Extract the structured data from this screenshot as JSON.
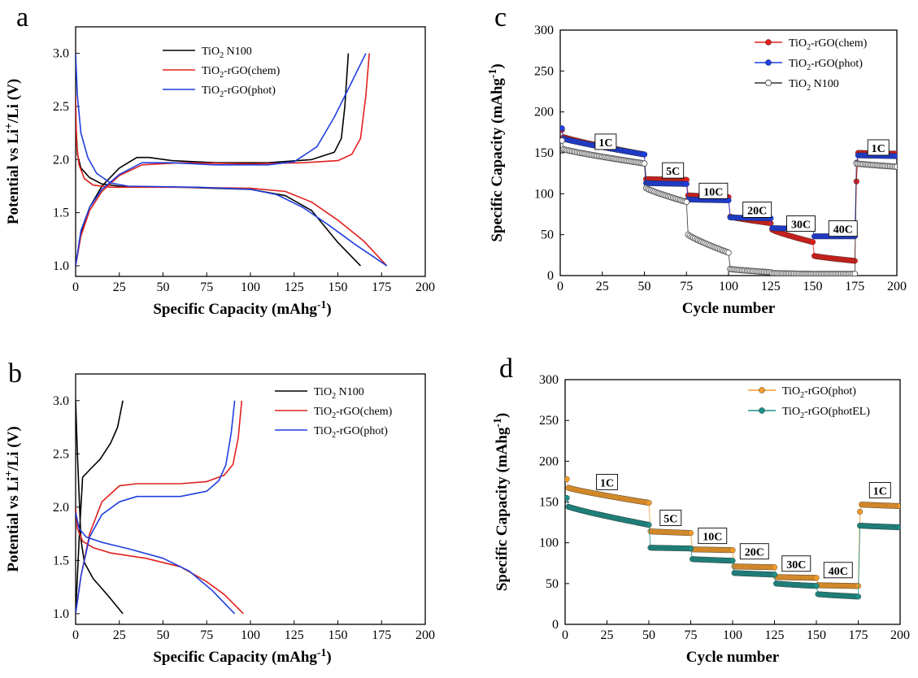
{
  "chart_data": [
    {
      "panel": "a",
      "type": "line",
      "xlabel": "Specific Capacity (mAhg⁻¹)",
      "ylabel": "Potential vs Li⁺/Li (V)",
      "xlim": [
        0,
        200
      ],
      "ylim": [
        0.9,
        3.25
      ],
      "xticks": [
        "0",
        "25",
        "50",
        "75",
        "100",
        "125",
        "150",
        "175",
        "200"
      ],
      "yticks": [
        "1.0",
        "1.5",
        "2.0",
        "2.5",
        "3.0"
      ],
      "legend_position": "top-center",
      "series": [
        {
          "name": "TiO₂ N100",
          "color": "#000000",
          "points": [
            [
              0,
              1.0
            ],
            [
              3,
              1.3
            ],
            [
              8,
              1.55
            ],
            [
              15,
              1.75
            ],
            [
              25,
              1.92
            ],
            [
              35,
              2.02
            ],
            [
              42,
              2.02
            ],
            [
              55,
              1.99
            ],
            [
              80,
              1.97
            ],
            [
              110,
              1.97
            ],
            [
              135,
              2.0
            ],
            [
              148,
              2.07
            ],
            [
              152,
              2.2
            ],
            [
              154,
              2.5
            ],
            [
              156,
              3.0
            ],
            null,
            [
              0,
              2.4
            ],
            [
              1,
              2.05
            ],
            [
              3,
              1.92
            ],
            [
              8,
              1.83
            ],
            [
              15,
              1.77
            ],
            [
              25,
              1.75
            ],
            [
              60,
              1.74
            ],
            [
              100,
              1.72
            ],
            [
              120,
              1.66
            ],
            [
              135,
              1.52
            ],
            [
              150,
              1.22
            ],
            [
              163,
              1.0
            ]
          ]
        },
        {
          "name": "TiO₂-rGO(chem)",
          "color": "#e0201c",
          "points": [
            [
              0,
              1.0
            ],
            [
              3,
              1.28
            ],
            [
              8,
              1.52
            ],
            [
              15,
              1.7
            ],
            [
              25,
              1.85
            ],
            [
              38,
              1.95
            ],
            [
              60,
              1.97
            ],
            [
              100,
              1.96
            ],
            [
              130,
              1.97
            ],
            [
              150,
              1.99
            ],
            [
              158,
              2.05
            ],
            [
              163,
              2.2
            ],
            [
              166,
              2.6
            ],
            [
              168,
              3.0
            ],
            null,
            [
              0,
              2.6
            ],
            [
              0.5,
              2.15
            ],
            [
              2,
              1.95
            ],
            [
              5,
              1.82
            ],
            [
              10,
              1.76
            ],
            [
              20,
              1.74
            ],
            [
              60,
              1.74
            ],
            [
              100,
              1.73
            ],
            [
              120,
              1.7
            ],
            [
              135,
              1.6
            ],
            [
              150,
              1.43
            ],
            [
              165,
              1.23
            ],
            [
              178,
              1.0
            ]
          ]
        },
        {
          "name": "TiO₂-rGO(phot)",
          "color": "#1f3fe0",
          "points": [
            [
              0,
              1.0
            ],
            [
              3,
              1.33
            ],
            [
              8,
              1.55
            ],
            [
              15,
              1.72
            ],
            [
              25,
              1.86
            ],
            [
              38,
              1.97
            ],
            [
              55,
              1.97
            ],
            [
              80,
              1.95
            ],
            [
              110,
              1.95
            ],
            [
              125,
              1.98
            ],
            [
              138,
              2.12
            ],
            [
              148,
              2.4
            ],
            [
              157,
              2.7
            ],
            [
              166,
              3.0
            ],
            null,
            [
              0,
              3.0
            ],
            [
              1,
              2.6
            ],
            [
              3,
              2.25
            ],
            [
              7,
              2.02
            ],
            [
              12,
              1.87
            ],
            [
              20,
              1.78
            ],
            [
              30,
              1.75
            ],
            [
              70,
              1.74
            ],
            [
              100,
              1.72
            ],
            [
              115,
              1.67
            ],
            [
              130,
              1.55
            ],
            [
              145,
              1.38
            ],
            [
              160,
              1.2
            ],
            [
              178,
              1.0
            ]
          ]
        }
      ]
    },
    {
      "panel": "b",
      "type": "line",
      "xlabel": "Specific Capacity (mAhg⁻¹)",
      "ylabel": "Potential vs Li⁺/Li (V)",
      "xlim": [
        0,
        200
      ],
      "ylim": [
        0.9,
        3.25
      ],
      "xticks": [
        "0",
        "25",
        "50",
        "75",
        "100",
        "125",
        "150",
        "175",
        "200"
      ],
      "yticks": [
        "1.0",
        "1.5",
        "2.0",
        "2.5",
        "3.0"
      ],
      "legend_position": "top-right",
      "series": [
        {
          "name": "TiO₂ N100",
          "color": "#000000",
          "points": [
            [
              0,
              1.0
            ],
            [
              1,
              1.35
            ],
            [
              2,
              1.7
            ],
            [
              3,
              2.0
            ],
            [
              4,
              2.28
            ],
            [
              8,
              2.35
            ],
            [
              14,
              2.45
            ],
            [
              20,
              2.6
            ],
            [
              24,
              2.75
            ],
            [
              27,
              3.0
            ],
            null,
            [
              0,
              3.0
            ],
            [
              1,
              2.5
            ],
            [
              3,
              1.7
            ],
            [
              5,
              1.48
            ],
            [
              10,
              1.33
            ],
            [
              18,
              1.18
            ],
            [
              27,
              1.0
            ]
          ]
        },
        {
          "name": "TiO₂-rGO(chem)",
          "color": "#e0201c",
          "points": [
            [
              0,
              1.0
            ],
            [
              3,
              1.35
            ],
            [
              8,
              1.75
            ],
            [
              15,
              2.05
            ],
            [
              25,
              2.2
            ],
            [
              35,
              2.22
            ],
            [
              60,
              2.22
            ],
            [
              75,
              2.24
            ],
            [
              85,
              2.3
            ],
            [
              90,
              2.4
            ],
            [
              93,
              2.65
            ],
            [
              95,
              3.0
            ],
            null,
            [
              0,
              2.0
            ],
            [
              1,
              1.8
            ],
            [
              4,
              1.68
            ],
            [
              10,
              1.62
            ],
            [
              20,
              1.57
            ],
            [
              40,
              1.52
            ],
            [
              60,
              1.44
            ],
            [
              75,
              1.3
            ],
            [
              85,
              1.18
            ],
            [
              96,
              1.0
            ]
          ]
        },
        {
          "name": "TiO₂-rGO(phot)",
          "color": "#1f3fe0",
          "points": [
            [
              0,
              1.0
            ],
            [
              3,
              1.35
            ],
            [
              8,
              1.72
            ],
            [
              15,
              1.93
            ],
            [
              25,
              2.05
            ],
            [
              35,
              2.1
            ],
            [
              60,
              2.1
            ],
            [
              75,
              2.15
            ],
            [
              82,
              2.25
            ],
            [
              86,
              2.4
            ],
            [
              89,
              2.7
            ],
            [
              91,
              3.0
            ],
            null,
            [
              0,
              1.95
            ],
            [
              2,
              1.8
            ],
            [
              6,
              1.72
            ],
            [
              15,
              1.67
            ],
            [
              30,
              1.61
            ],
            [
              50,
              1.52
            ],
            [
              65,
              1.4
            ],
            [
              78,
              1.22
            ],
            [
              91,
              1.0
            ]
          ]
        }
      ]
    },
    {
      "panel": "c",
      "type": "scatter",
      "xlabel": "Cycle number",
      "ylabel": "Specific Capacity (mAhg⁻¹)",
      "xlim": [
        0,
        200
      ],
      "ylim": [
        0,
        300
      ],
      "xticks": [
        "0",
        "25",
        "50",
        "75",
        "100",
        "125",
        "150",
        "175",
        "200"
      ],
      "yticks": [
        "0",
        "50",
        "100",
        "150",
        "200",
        "250",
        "300"
      ],
      "legend_position": "top-right",
      "rate_labels": [
        {
          "text": "1C",
          "x": 27,
          "y": 163
        },
        {
          "text": "5C",
          "x": 67,
          "y": 128
        },
        {
          "text": "10C",
          "x": 91,
          "y": 103
        },
        {
          "text": "20C",
          "x": 117,
          "y": 80
        },
        {
          "text": "30C",
          "x": 143,
          "y": 63
        },
        {
          "text": "40C",
          "x": 168,
          "y": 57
        },
        {
          "text": "1C",
          "x": 189,
          "y": 156
        }
      ],
      "series": [
        {
          "name": "TiO₂-rGO(chem)",
          "color": "#e0201c",
          "marker": "filled",
          "segments": [
            {
              "from": 1,
              "to": 50,
              "start": 170,
              "end": 148,
              "first": 178
            },
            {
              "from": 51,
              "to": 75,
              "start": 118,
              "end": 117
            },
            {
              "from": 76,
              "to": 100,
              "start": 98,
              "end": 96
            },
            {
              "from": 101,
              "to": 125,
              "start": 72,
              "end": 64
            },
            {
              "from": 126,
              "to": 150,
              "start": 56,
              "end": 41
            },
            {
              "from": 151,
              "to": 175,
              "start": 24,
              "end": 18
            },
            {
              "from": 176,
              "to": 200,
              "start": 150,
              "end": 149,
              "first": 115
            }
          ]
        },
        {
          "name": "TiO₂-rGO(phot)",
          "color": "#1f3fe0",
          "marker": "filled",
          "segments": [
            {
              "from": 1,
              "to": 50,
              "start": 168,
              "end": 148,
              "first": 180
            },
            {
              "from": 51,
              "to": 75,
              "start": 113,
              "end": 112
            },
            {
              "from": 76,
              "to": 100,
              "start": 93,
              "end": 92
            },
            {
              "from": 101,
              "to": 125,
              "start": 71,
              "end": 70
            },
            {
              "from": 126,
              "to": 150,
              "start": 58,
              "end": 57
            },
            {
              "from": 151,
              "to": 175,
              "start": 48,
              "end": 48
            },
            {
              "from": 176,
              "to": 200,
              "start": 147,
              "end": 146,
              "first": 138
            }
          ]
        },
        {
          "name": "TiO₂ N100",
          "color": "#333333",
          "marker": "open",
          "segments": [
            {
              "from": 1,
              "to": 50,
              "start": 155,
              "end": 137,
              "first": 165
            },
            {
              "from": 51,
              "to": 75,
              "start": 107,
              "end": 90
            },
            {
              "from": 76,
              "to": 100,
              "start": 50,
              "end": 28
            },
            {
              "from": 101,
              "to": 125,
              "start": 8,
              "end": 4
            },
            {
              "from": 126,
              "to": 150,
              "start": 3,
              "end": 2
            },
            {
              "from": 151,
              "to": 175,
              "start": 2,
              "end": 2
            },
            {
              "from": 176,
              "to": 200,
              "start": 137,
              "end": 133
            }
          ]
        }
      ]
    },
    {
      "panel": "d",
      "type": "scatter",
      "xlabel": "Cycle number",
      "ylabel": "Specific Capacity (mAhg⁻¹)",
      "xlim": [
        0,
        200
      ],
      "ylim": [
        0,
        300
      ],
      "xticks": [
        "0",
        "25",
        "50",
        "75",
        "100",
        "125",
        "150",
        "175",
        "200"
      ],
      "yticks": [
        "0",
        "50",
        "100",
        "150",
        "200",
        "250",
        "300"
      ],
      "legend_position": "top-right",
      "rate_labels": [
        {
          "text": "1C",
          "x": 25,
          "y": 174
        },
        {
          "text": "5C",
          "x": 63,
          "y": 130
        },
        {
          "text": "10C",
          "x": 88,
          "y": 108
        },
        {
          "text": "20C",
          "x": 113,
          "y": 89
        },
        {
          "text": "30C",
          "x": 138,
          "y": 74
        },
        {
          "text": "40C",
          "x": 163,
          "y": 66
        },
        {
          "text": "1C",
          "x": 188,
          "y": 164
        }
      ],
      "series": [
        {
          "name": "TiO₂-rGO(phot)",
          "color": "#f39c2b",
          "marker": "filled",
          "segments": [
            {
              "from": 1,
              "to": 50,
              "start": 168,
              "end": 149,
              "first": 178
            },
            {
              "from": 51,
              "to": 75,
              "start": 114,
              "end": 112
            },
            {
              "from": 76,
              "to": 100,
              "start": 92,
              "end": 91
            },
            {
              "from": 101,
              "to": 125,
              "start": 71,
              "end": 70
            },
            {
              "from": 126,
              "to": 150,
              "start": 58,
              "end": 57
            },
            {
              "from": 151,
              "to": 175,
              "start": 48,
              "end": 47
            },
            {
              "from": 176,
              "to": 200,
              "start": 147,
              "end": 145,
              "first": 138
            }
          ]
        },
        {
          "name": "TiO₂-rGO(photEL)",
          "color": "#1f8f88",
          "marker": "filled",
          "segments": [
            {
              "from": 1,
              "to": 50,
              "start": 145,
              "end": 122,
              "first": 155
            },
            {
              "from": 51,
              "to": 75,
              "start": 94,
              "end": 93
            },
            {
              "from": 76,
              "to": 100,
              "start": 80,
              "end": 78
            },
            {
              "from": 101,
              "to": 125,
              "start": 63,
              "end": 61
            },
            {
              "from": 126,
              "to": 150,
              "start": 50,
              "end": 47
            },
            {
              "from": 151,
              "to": 175,
              "start": 37,
              "end": 34
            },
            {
              "from": 176,
              "to": 200,
              "start": 121,
              "end": 119
            }
          ]
        }
      ]
    }
  ],
  "panel_letters": [
    "a",
    "b",
    "c",
    "d"
  ]
}
